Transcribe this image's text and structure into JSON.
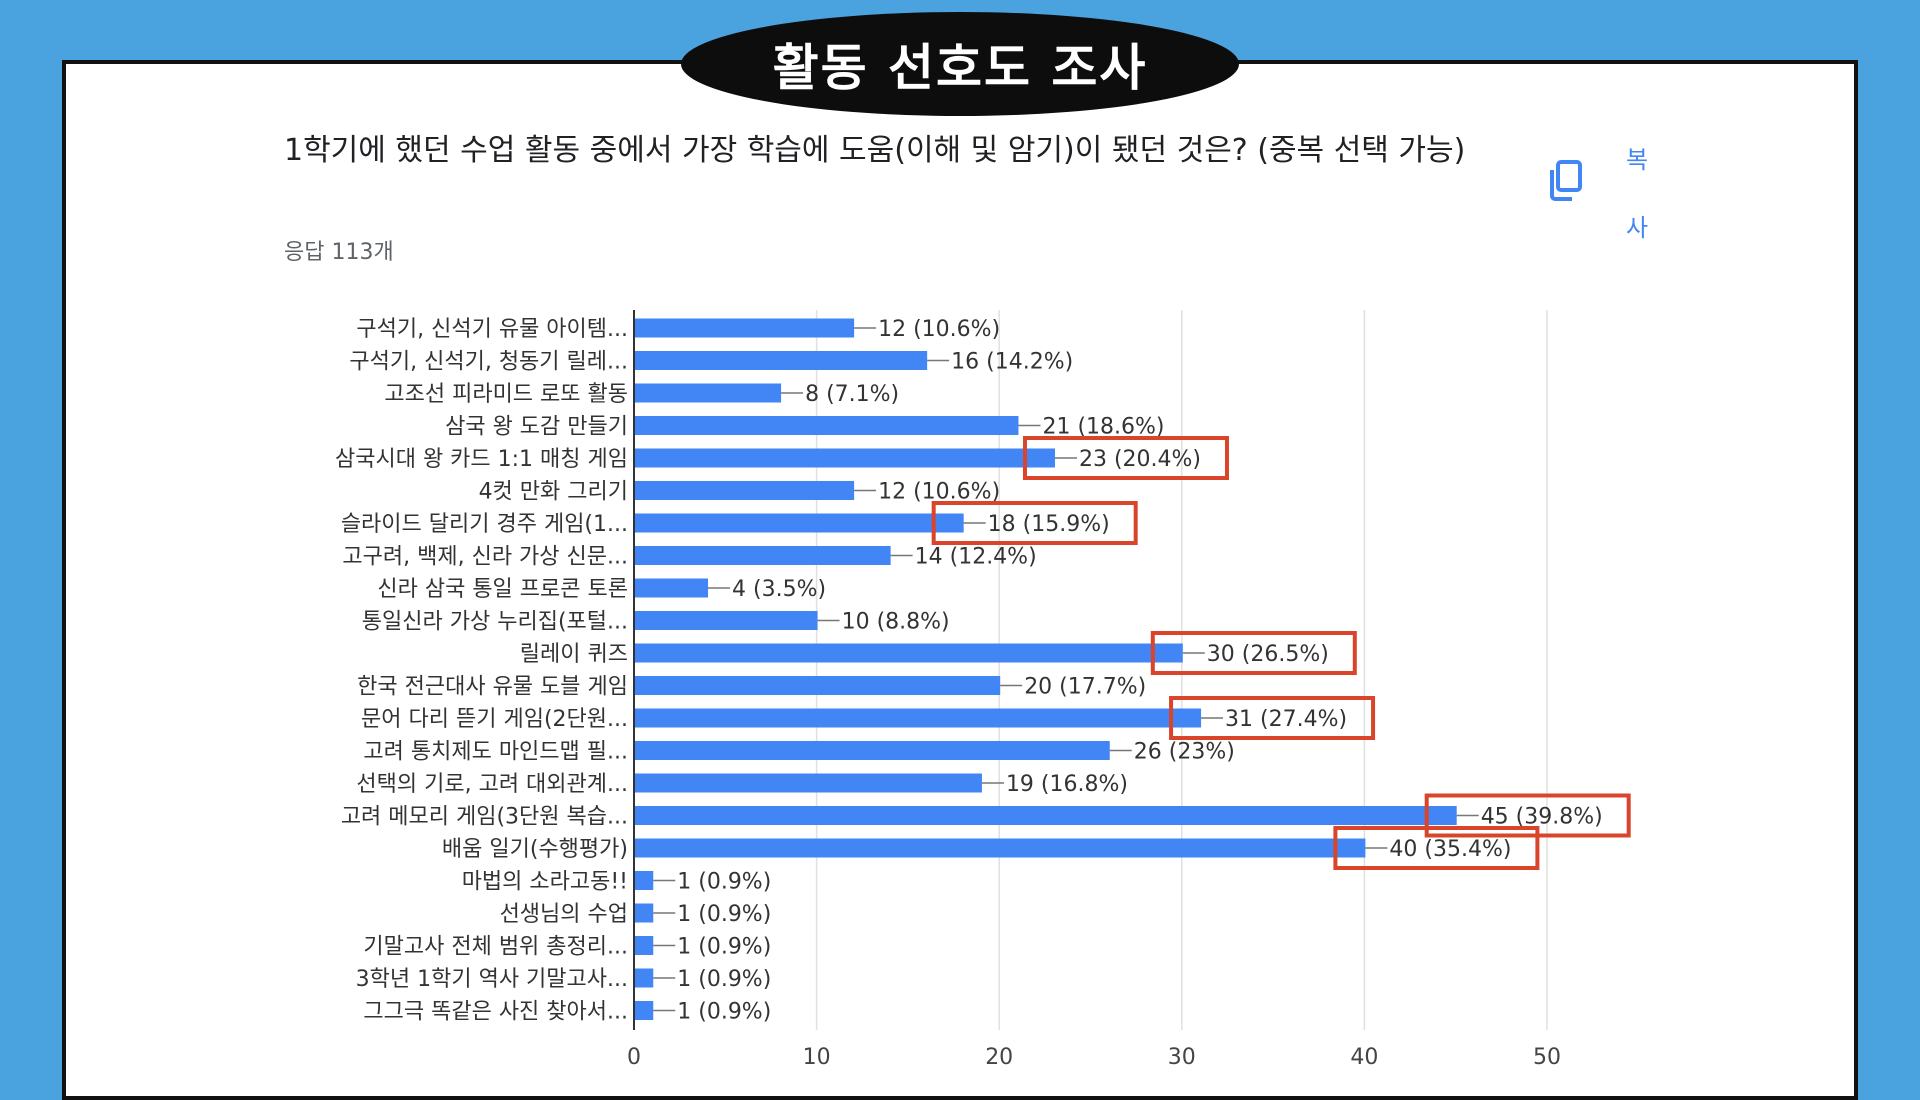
{
  "header": {
    "title": "활동 선호도 조사"
  },
  "form": {
    "question": "1학기에 했던 수업 활동 중에서 가장 학습에 도움(이해 및 암기)이 됐던 것은? (중복 선택 가능)",
    "responses": "응답 113개",
    "copy_label": "복사",
    "copy_icon": "copy-icon"
  },
  "colors": {
    "bar": "#4285f4",
    "highlight": "#d9442b",
    "background": "#4aa3df"
  },
  "chart_data": {
    "type": "bar",
    "orientation": "horizontal",
    "categories": [
      "구석기, 신석기 유물 아이템...",
      "구석기, 신석기, 청동기 릴레...",
      "고조선 피라미드 로또 활동",
      "삼국 왕 도감 만들기",
      "삼국시대 왕 카드 1:1 매칭 게임",
      "4컷 만화 그리기",
      "슬라이드 달리기 경주 게임(1...",
      "고구려, 백제, 신라 가상 신문...",
      "신라 삼국 통일 프로콘 토론",
      "통일신라 가상 누리집(포털...",
      "릴레이 퀴즈",
      "한국 전근대사 유물 도블 게임",
      "문어 다리 뜯기 게임(2단원...",
      "고려 통치제도 마인드맵 필...",
      "선택의 기로, 고려 대외관계...",
      "고려 메모리 게임(3단원 복습...",
      "배움 일기(수행평가)",
      "마법의 소라고동!!",
      "선생님의 수업",
      "기말고사 전체 범위 총정리...",
      "3학년 1학기 역사 기말고사...",
      "그그극 똑같은 사진 찾아서..."
    ],
    "values": [
      12,
      16,
      8,
      21,
      23,
      12,
      18,
      14,
      4,
      10,
      30,
      20,
      31,
      26,
      19,
      45,
      40,
      1,
      1,
      1,
      1,
      1
    ],
    "labels": [
      "12 (10.6%)",
      "16 (14.2%)",
      "8 (7.1%)",
      "21 (18.6%)",
      "23 (20.4%)",
      "12 (10.6%)",
      "18 (15.9%)",
      "14 (12.4%)",
      "4 (3.5%)",
      "10 (8.8%)",
      "30 (26.5%)",
      "20 (17.7%)",
      "31 (27.4%)",
      "26 (23%)",
      "19 (16.8%)",
      "45 (39.8%)",
      "40 (35.4%)",
      "1 (0.9%)",
      "1 (0.9%)",
      "1 (0.9%)",
      "1 (0.9%)",
      "1 (0.9%)"
    ],
    "highlighted_indices": [
      4,
      6,
      10,
      12,
      15,
      16
    ],
    "xlim": [
      0,
      50
    ],
    "xticks": [
      "0",
      "10",
      "20",
      "30",
      "40",
      "50"
    ],
    "grid": true
  }
}
